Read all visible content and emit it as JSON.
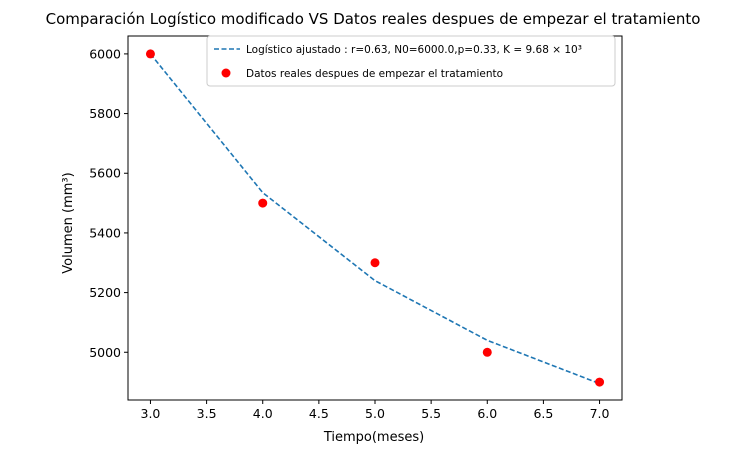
{
  "chart_data": {
    "type": "line",
    "title": "Comparación Logístico modificado VS Datos reales despues de empezar el tratamiento",
    "xlabel": "Tiempo(meses)",
    "ylabel": "Volumen (mm³)",
    "xlim": [
      2.8,
      7.2
    ],
    "ylim": [
      4840,
      6060
    ],
    "xticks": [
      3.0,
      3.5,
      4.0,
      4.5,
      5.0,
      5.5,
      6.0,
      6.5,
      7.0
    ],
    "xtick_labels": [
      "3.0",
      "3.5",
      "4.0",
      "4.5",
      "5.0",
      "5.5",
      "6.0",
      "6.5",
      "7.0"
    ],
    "yticks": [
      5000,
      5200,
      5400,
      5600,
      5800,
      6000
    ],
    "ytick_labels": [
      "5000",
      "5200",
      "5400",
      "5600",
      "5800",
      "6000"
    ],
    "grid": false,
    "legend_position": "top-right",
    "series": [
      {
        "name": "Logístico ajustado : r=0.63, N0=6000.0,p=0.33, K = 9.68 × 10³",
        "kind": "line",
        "style": "dashed",
        "color": "#1f77b4",
        "x": [
          3,
          4,
          5,
          6,
          7
        ],
        "y": [
          6000,
          5535,
          5240,
          5040,
          4895
        ]
      },
      {
        "name": "Datos reales despues de empezar el tratamiento",
        "kind": "scatter",
        "color": "#ff0000",
        "x": [
          3,
          4,
          5,
          6,
          7
        ],
        "y": [
          6000,
          5500,
          5300,
          5000,
          4900
        ]
      }
    ]
  }
}
